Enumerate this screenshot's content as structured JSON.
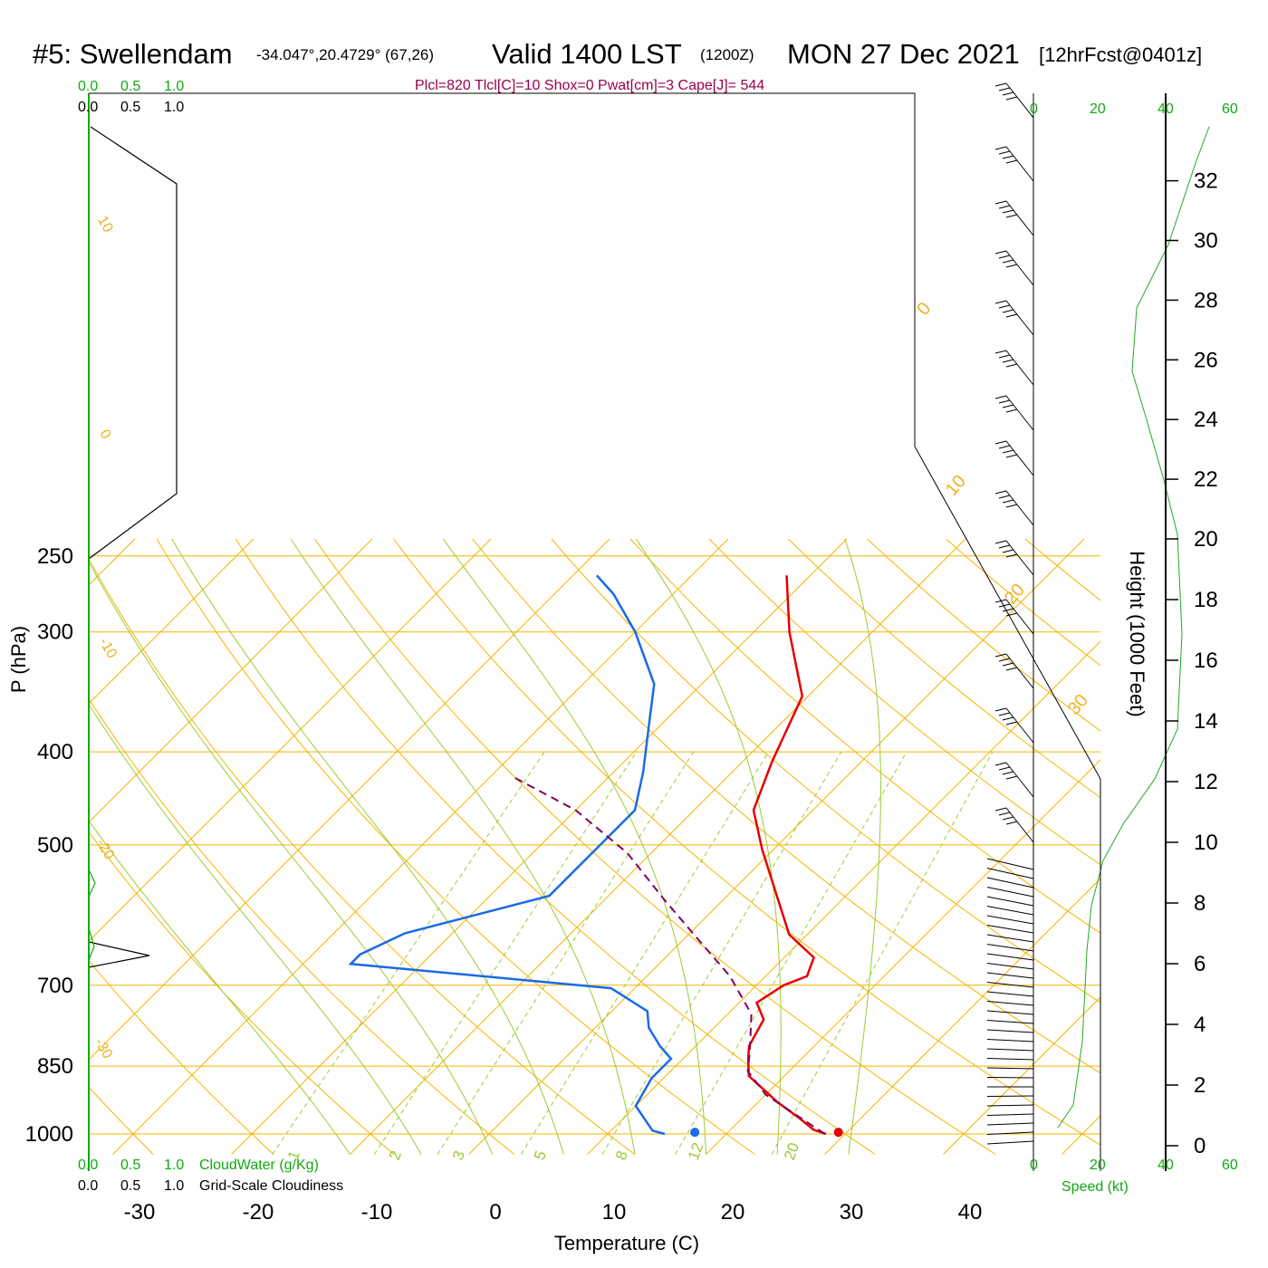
{
  "header": {
    "station": "#5: Swellendam",
    "coords": "-34.047°,20.4729° (67,26)",
    "valid": "Valid 1400 LST",
    "zulu": "(1200Z)",
    "date": "MON 27 Dec 2021",
    "forecast": "[12hrFcst@0401z]",
    "params": "Plcl=820 Tlcl[C]=10 Shox=0 Pwat[cm]=3 Cape[J]= 544"
  },
  "labels": {
    "ylabel": "P (hPa)",
    "xlabel": "Temperature (C)",
    "height_label": "Height (1000 Feet)",
    "cloudwater_label": "CloudWater (g/Kg)",
    "cloudiness_label": "Grid-Scale Cloudiness",
    "speed_label": "Speed (kt)"
  },
  "scales": {
    "cloud_green": [
      "0.0",
      "0.5",
      "1.0"
    ],
    "cloud_black": [
      "0.0",
      "0.5",
      "1.0"
    ],
    "speed": [
      "0",
      "20",
      "40",
      "60"
    ]
  },
  "chart_data": {
    "type": "line",
    "title": "#5: Swellendam Valid 1400 LST (1200Z) MON 27 Dec 2021 [12hrFcst@0401z]",
    "xlabel": "Temperature (C)",
    "ylabel": "P (hPa)",
    "y_scale": "log",
    "xlim": [
      -34,
      36
    ],
    "ylim": [
      1050,
      250
    ],
    "x_ticks": [
      "-30",
      "-20",
      "-10",
      "0",
      "10",
      "20",
      "30",
      "40"
    ],
    "pressure_ticks": [
      "250",
      "300",
      "400",
      "500",
      "700",
      "850",
      "1000"
    ],
    "height_ticks_kft": [
      "0",
      "2",
      "4",
      "6",
      "8",
      "10",
      "12",
      "14",
      "16",
      "18",
      "20",
      "22",
      "24",
      "26",
      "28",
      "30",
      "32"
    ],
    "isotherm_labels": [
      "10",
      "0",
      "-10",
      "-20",
      "-30",
      "0",
      "10",
      "20",
      "30"
    ],
    "mixing_ratio_labels": [
      "1",
      "2",
      "3",
      "5",
      "8",
      "12",
      "20"
    ],
    "series": [
      {
        "name": "Temperature",
        "color": "#e60000",
        "points": [
          [
            28.4,
            1000
          ],
          [
            27,
            990
          ],
          [
            25,
            965
          ],
          [
            21.5,
            925
          ],
          [
            17,
            870
          ],
          [
            15.5,
            835
          ],
          [
            14.5,
            810
          ],
          [
            13.5,
            760
          ],
          [
            11.5,
            730
          ],
          [
            12.3,
            700
          ],
          [
            13.5,
            685
          ],
          [
            12.5,
            655
          ],
          [
            8.5,
            620
          ],
          [
            5,
            575
          ],
          [
            -1,
            505
          ],
          [
            -5,
            460
          ],
          [
            -7.5,
            410
          ],
          [
            -10.5,
            350
          ],
          [
            -17,
            300
          ],
          [
            -22,
            262
          ]
        ]
      },
      {
        "name": "Dewpoint",
        "color": "#1a6ae6",
        "points": [
          [
            14.8,
            1000
          ],
          [
            13.5,
            992
          ],
          [
            10,
            935
          ],
          [
            9,
            875
          ],
          [
            9,
            835
          ],
          [
            7,
            810
          ],
          [
            4.5,
            775
          ],
          [
            3,
            745
          ],
          [
            -2,
            705
          ],
          [
            -26,
            665
          ],
          [
            -26,
            650
          ],
          [
            -24,
            618
          ],
          [
            -15,
            565
          ],
          [
            -15,
            502
          ],
          [
            -15,
            460
          ],
          [
            -17.5,
            420
          ],
          [
            -21,
            375
          ],
          [
            -24,
            340
          ],
          [
            -30,
            300
          ],
          [
            -35,
            274
          ],
          [
            -38,
            262
          ]
        ]
      },
      {
        "name": "Parcel",
        "color": "#800060",
        "dashed": true,
        "points": [
          [
            28.3,
            1000
          ],
          [
            20,
            910
          ],
          [
            16.5,
            860
          ],
          [
            15,
            820
          ],
          [
            12,
            750
          ],
          [
            7,
            685
          ],
          [
            1,
            625
          ],
          [
            -5,
            570
          ],
          [
            -12,
            510
          ],
          [
            -20,
            460
          ],
          [
            -28,
            425
          ]
        ]
      }
    ],
    "surface_markers": [
      {
        "name": "surface-temperature",
        "t": 29.3,
        "p": 996,
        "color": "#e60000"
      },
      {
        "name": "surface-dewpoint",
        "t": 17.2,
        "p": 996,
        "color": "#1a6ae6"
      }
    ]
  }
}
